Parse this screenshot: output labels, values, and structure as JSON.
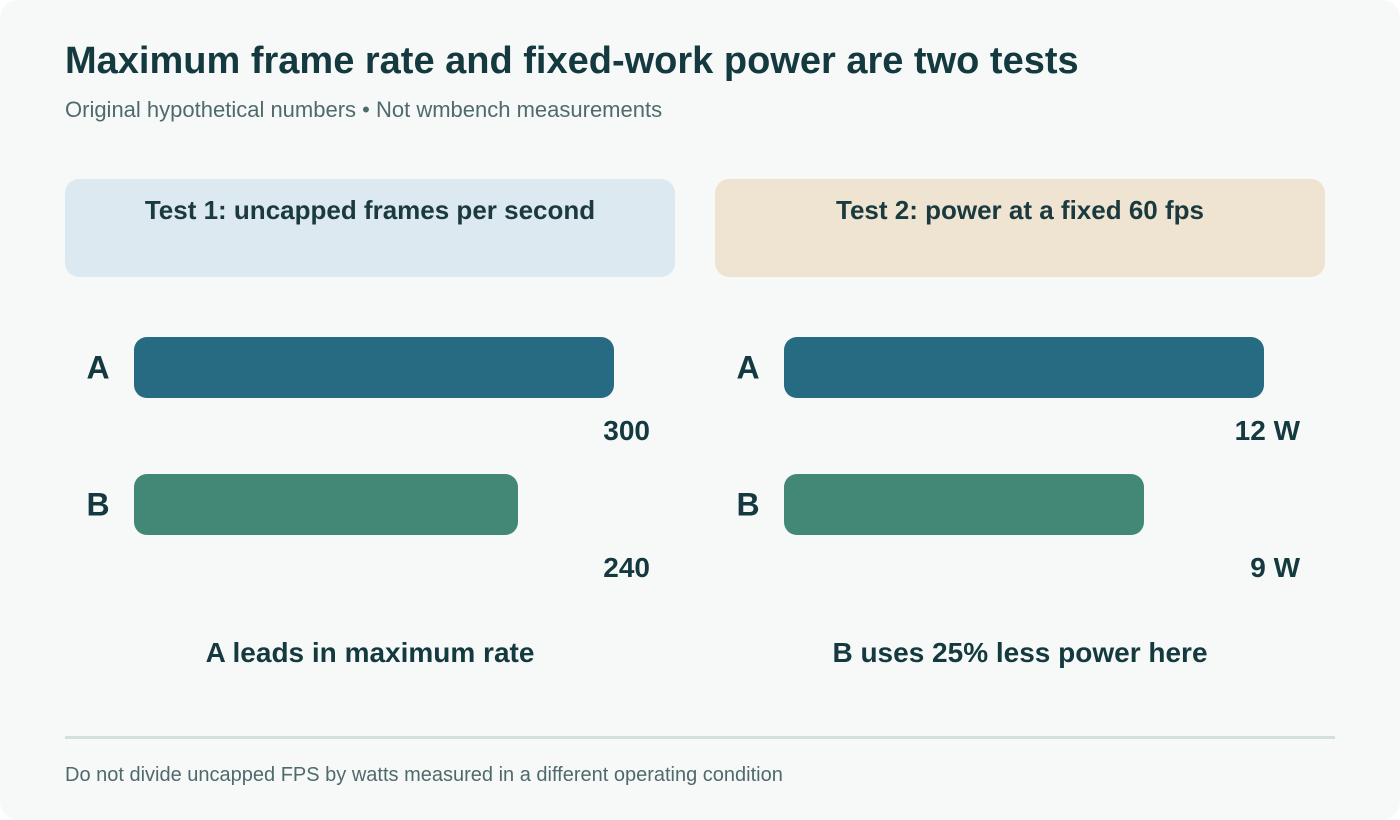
{
  "title": "Maximum frame rate and fixed-work power are two tests",
  "subtitle": "Original hypothetical numbers • Not wmbench measurements",
  "footer": "Do not divide uncapped FPS by watts measured in a different operating condition",
  "colors": {
    "bar_a": "#276b82",
    "bar_b": "#438876",
    "test1_header_bg": "#dce9f1",
    "test2_header_bg": "#efe3d1",
    "text": "#143a3f"
  },
  "chart_data": [
    {
      "type": "bar",
      "orientation": "horizontal",
      "title": "Test 1: uncapped frames per second",
      "categories": [
        "A",
        "B"
      ],
      "values": [
        300,
        240
      ],
      "value_labels": [
        "300",
        "240"
      ],
      "xlim": [
        0,
        330
      ],
      "grid": false,
      "annotation": "A leads in maximum rate"
    },
    {
      "type": "bar",
      "orientation": "horizontal",
      "title": "Test 2: power at a fixed 60 fps",
      "categories": [
        "A",
        "B"
      ],
      "values": [
        12,
        9
      ],
      "value_labels": [
        "12 W",
        "9 W"
      ],
      "xlim": [
        0,
        13.2
      ],
      "grid": false,
      "annotation": "B uses 25% less power here"
    }
  ]
}
